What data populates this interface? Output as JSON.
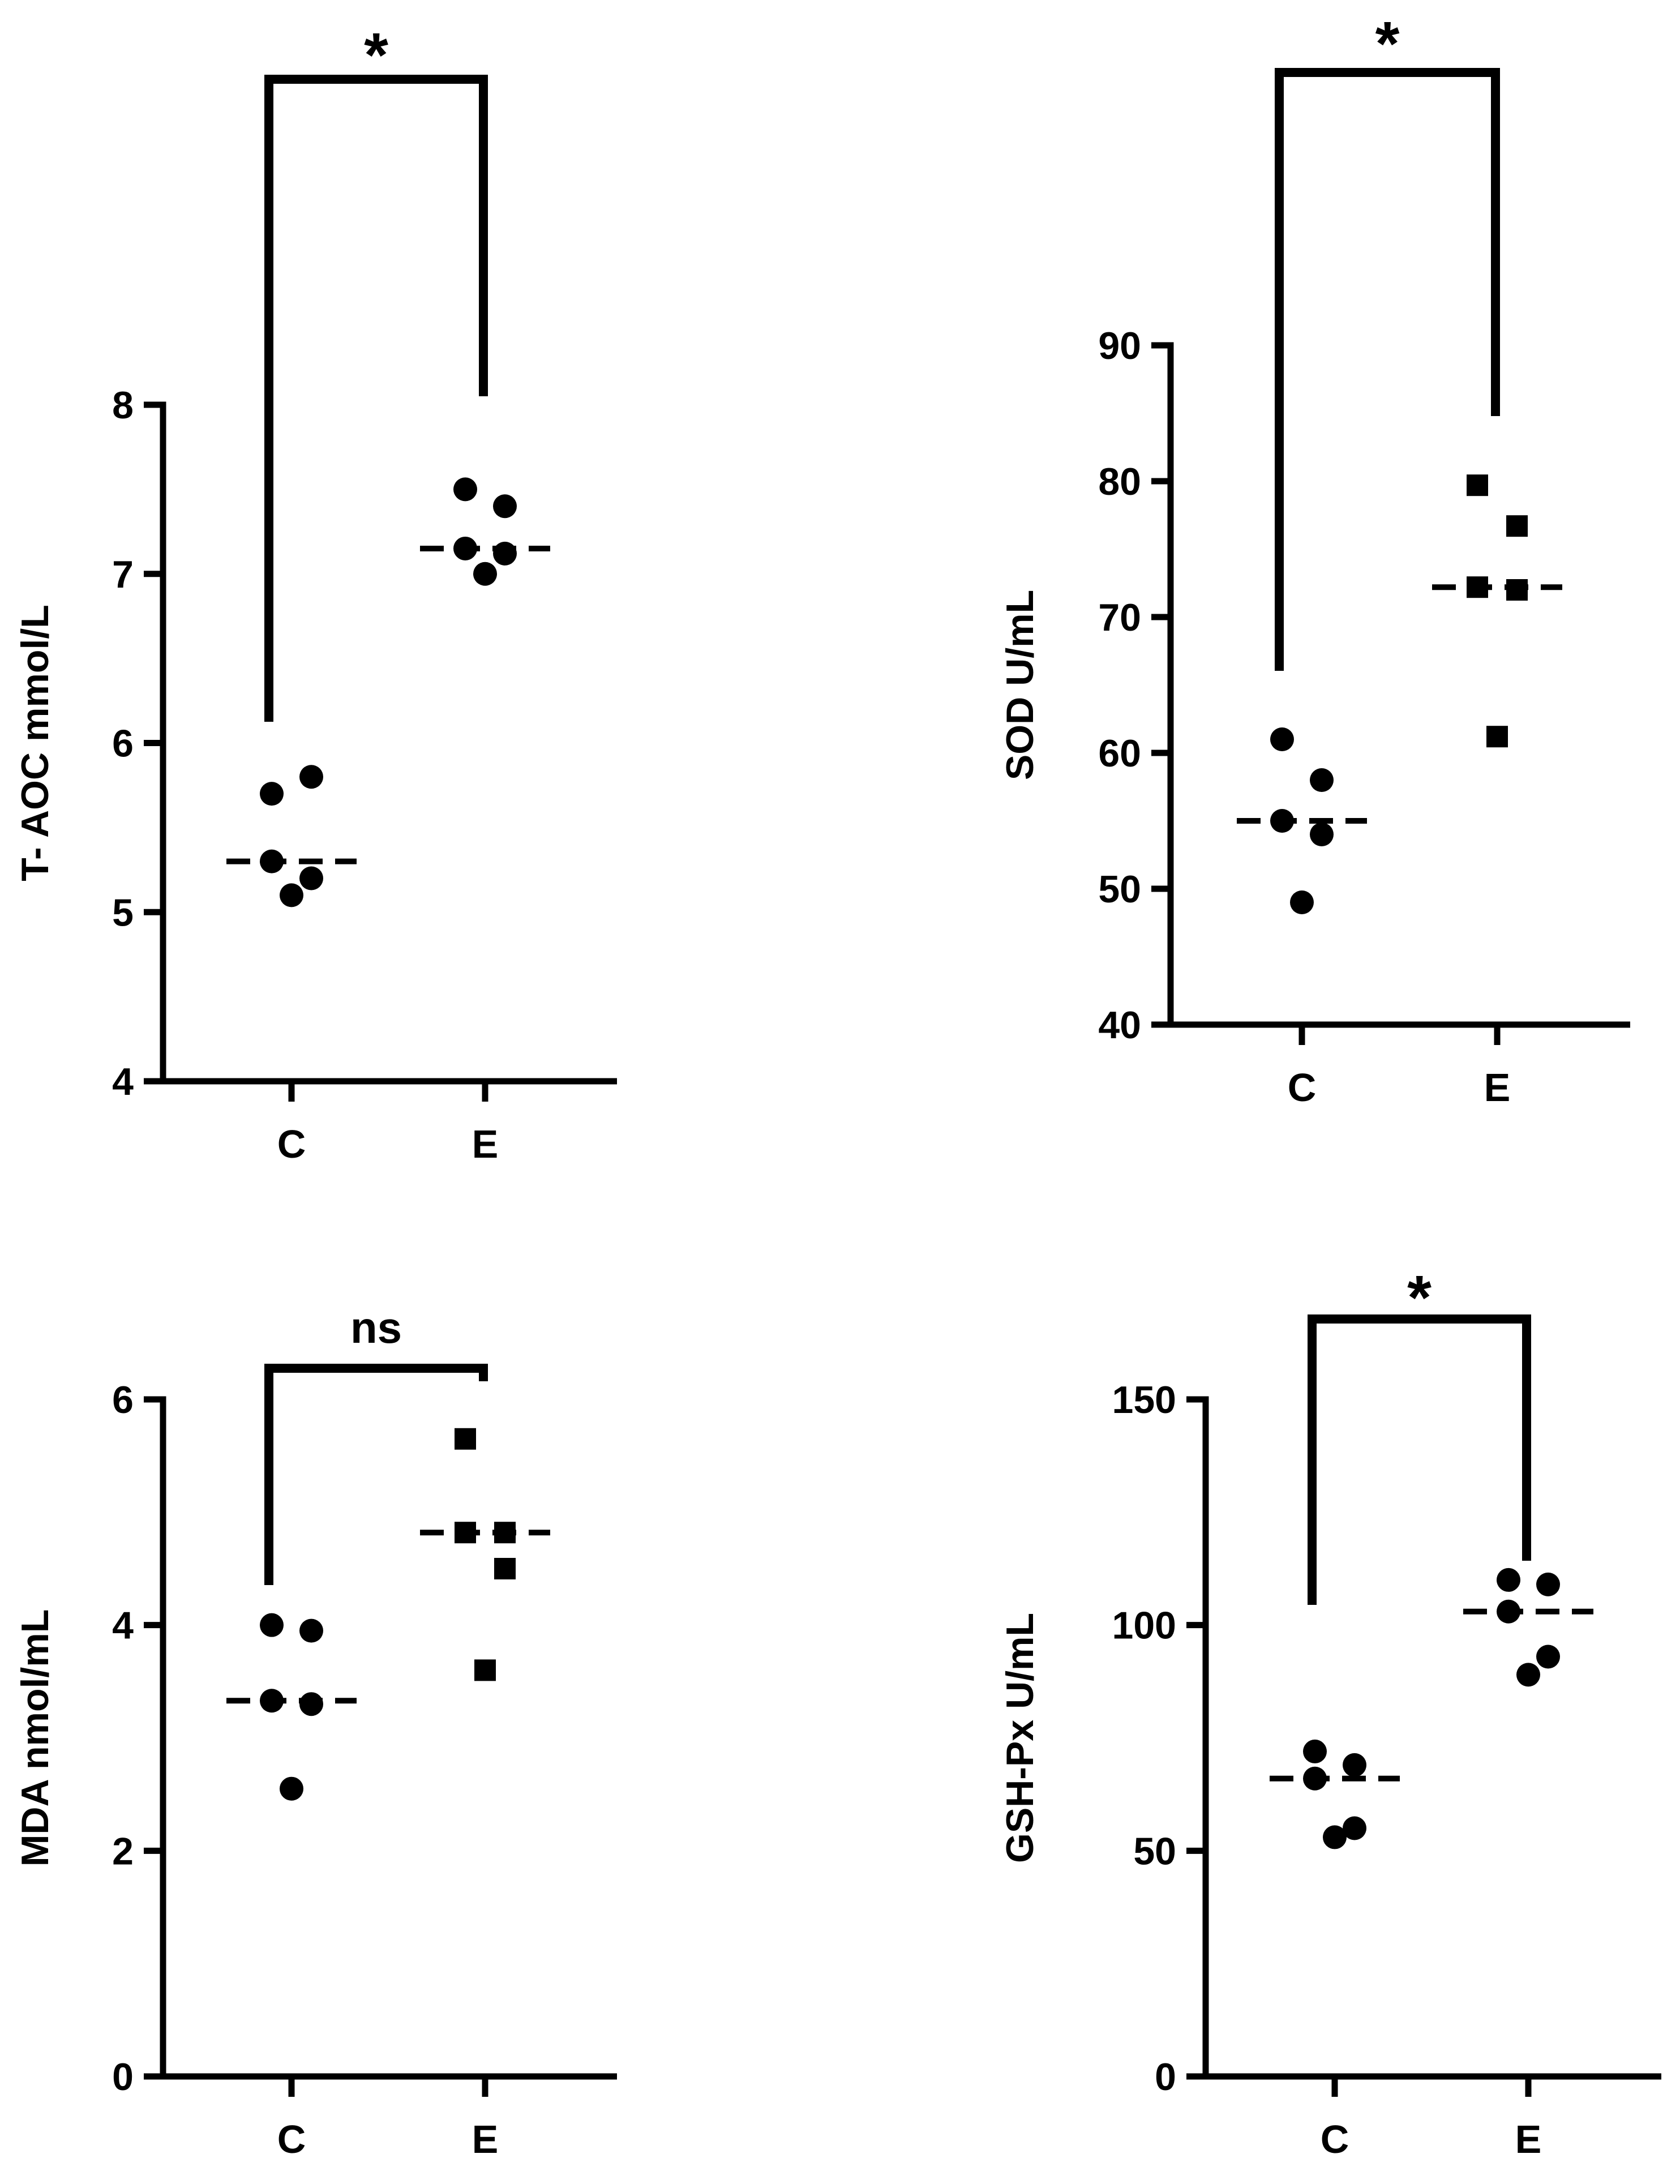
{
  "chart_data": [
    {
      "id": "tac",
      "type": "scatter",
      "ylabel": "T- AOC mmol/L",
      "categories": [
        "C",
        "E"
      ],
      "ylim": [
        4,
        8
      ],
      "yticks": [
        4,
        5,
        6,
        7,
        8
      ],
      "series": [
        {
          "name": "C",
          "marker": "circle",
          "values": [
            5.7,
            5.8,
            5.3,
            5.2,
            5.1
          ],
          "median": 5.3
        },
        {
          "name": "E",
          "marker": "circle",
          "values": [
            7.5,
            7.4,
            7.15,
            7.12,
            7.0
          ],
          "median": 7.15
        }
      ],
      "significance": "*"
    },
    {
      "id": "sod",
      "type": "scatter",
      "ylabel": "SOD U/mL",
      "categories": [
        "C",
        "E"
      ],
      "ylim": [
        40,
        90
      ],
      "yticks": [
        40,
        50,
        60,
        70,
        80,
        90
      ],
      "series": [
        {
          "name": "C",
          "marker": "circle",
          "values": [
            61,
            58,
            55,
            54,
            49
          ],
          "median": 55
        },
        {
          "name": "E",
          "marker": "square",
          "values": [
            79.7,
            76.7,
            72.2,
            72,
            61.2
          ],
          "median": 72.2
        }
      ],
      "significance": "*"
    },
    {
      "id": "mda",
      "type": "scatter",
      "ylabel": "MDA  nmol/mL",
      "categories": [
        "C",
        "E"
      ],
      "ylim": [
        0,
        6
      ],
      "yticks": [
        0,
        2,
        4,
        6
      ],
      "series": [
        {
          "name": "C",
          "marker": "circle",
          "values": [
            4.0,
            3.95,
            3.33,
            3.3,
            2.55
          ],
          "median": 3.33
        },
        {
          "name": "E",
          "marker": "square",
          "values": [
            5.65,
            4.82,
            4.82,
            4.5,
            3.6
          ],
          "median": 4.82
        }
      ],
      "significance": "ns"
    },
    {
      "id": "gsh",
      "type": "scatter",
      "ylabel": "GSH-Px U/mL",
      "categories": [
        "C",
        "E"
      ],
      "ylim": [
        0,
        150
      ],
      "yticks": [
        0,
        50,
        100,
        150
      ],
      "series": [
        {
          "name": "C",
          "marker": "circle",
          "values": [
            72,
            69,
            66,
            55,
            53
          ],
          "median": 66
        },
        {
          "name": "E",
          "marker": "circle",
          "values": [
            110,
            109,
            103,
            93,
            89
          ],
          "median": 103
        }
      ],
      "significance": "*"
    }
  ]
}
